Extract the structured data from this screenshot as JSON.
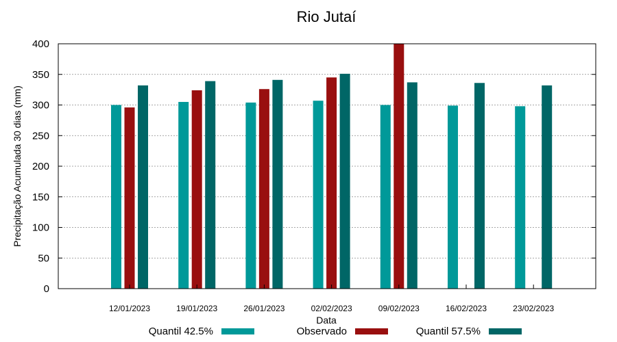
{
  "chart_data": {
    "type": "bar",
    "title": "Rio Jutaí",
    "xlabel": "Data",
    "ylabel": "Precipitação Acumulada 30 dias (mm)",
    "ylim": [
      0,
      400
    ],
    "yticks": [
      0,
      50,
      100,
      150,
      200,
      250,
      300,
      350,
      400
    ],
    "grid": true,
    "legend_position": "bottom",
    "categories": [
      "12/01/2023",
      "19/01/2023",
      "26/01/2023",
      "02/02/2023",
      "09/02/2023",
      "16/02/2023",
      "23/02/2023"
    ],
    "series": [
      {
        "name": "Quantil 42.5%",
        "color": "#009999",
        "values": [
          300,
          305,
          304,
          307,
          300,
          299,
          298
        ]
      },
      {
        "name": "Observado",
        "color": "#990f0f",
        "values": [
          296,
          324,
          326,
          345,
          400,
          null,
          null
        ]
      },
      {
        "name": "Quantil 57.5%",
        "color": "#006666",
        "values": [
          332,
          339,
          341,
          351,
          337,
          336,
          332
        ]
      }
    ]
  }
}
